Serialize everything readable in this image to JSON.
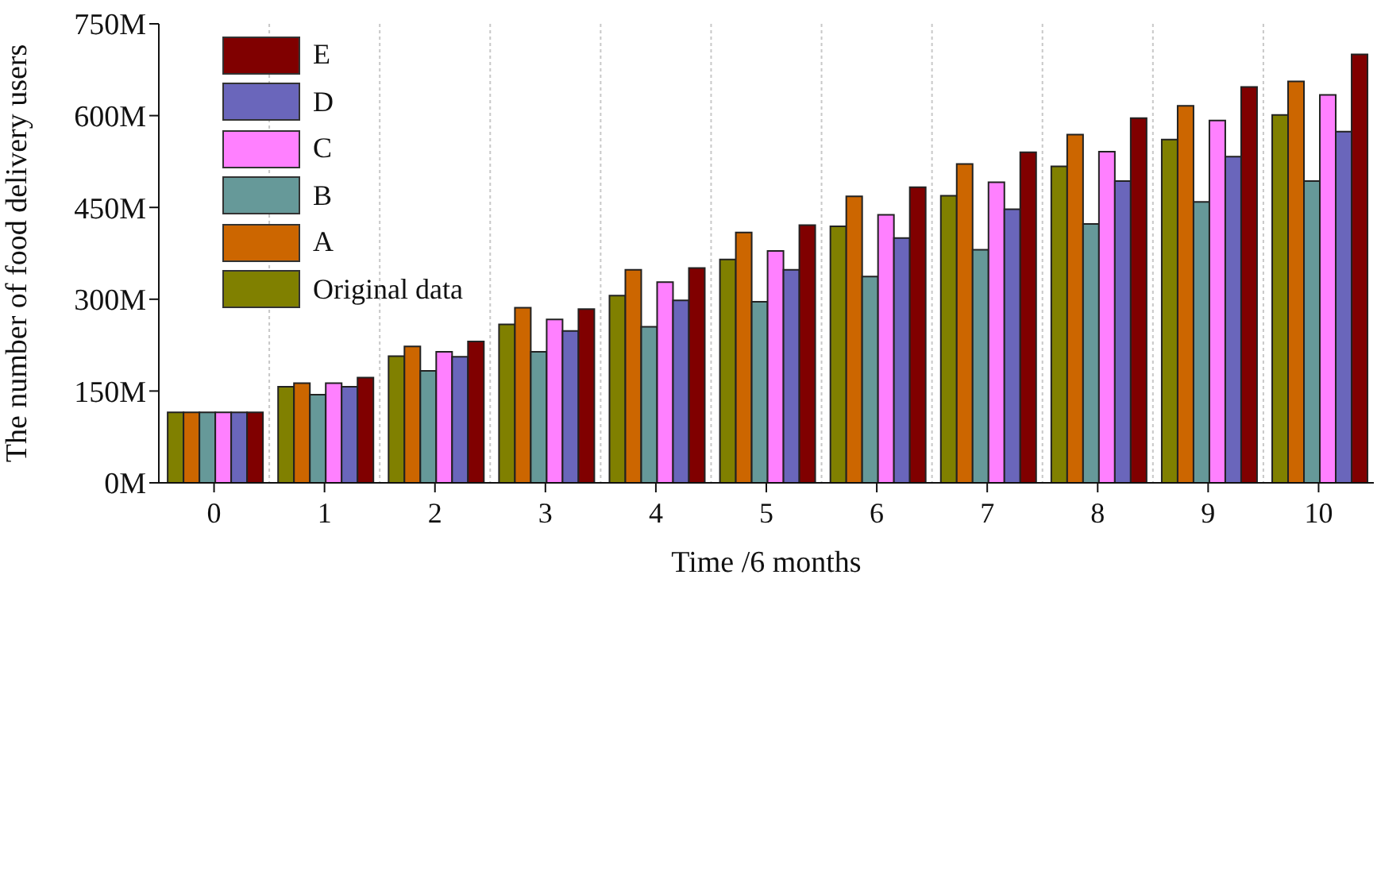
{
  "chart_data": {
    "type": "bar",
    "xlabel": "Time /6 months",
    "ylabel": "The number of food delivery users",
    "categories": [
      "0",
      "1",
      "2",
      "3",
      "4",
      "5",
      "6",
      "7",
      "8",
      "9",
      "10"
    ],
    "series": [
      {
        "name": "Original data",
        "color": "#808000",
        "values": [
          115,
          157,
          207,
          259,
          306,
          365,
          419,
          469,
          517,
          561,
          601
        ]
      },
      {
        "name": "A",
        "color": "#cc6600",
        "values": [
          115,
          163,
          223,
          286,
          348,
          409,
          468,
          521,
          569,
          616,
          656
        ]
      },
      {
        "name": "B",
        "color": "#669999",
        "values": [
          115,
          144,
          183,
          214,
          255,
          296,
          337,
          381,
          423,
          459,
          493
        ]
      },
      {
        "name": "C",
        "color": "#ff80ff",
        "values": [
          115,
          163,
          214,
          267,
          328,
          379,
          438,
          491,
          541,
          592,
          634
        ]
      },
      {
        "name": "D",
        "color": "#6a66bb",
        "values": [
          115,
          157,
          206,
          248,
          298,
          348,
          400,
          447,
          493,
          533,
          574
        ]
      },
      {
        "name": "E",
        "color": "#800000",
        "values": [
          115,
          172,
          231,
          284,
          351,
          421,
          483,
          540,
          596,
          647,
          700
        ]
      }
    ],
    "ylim": [
      0,
      750
    ],
    "yticks": [
      {
        "value": 0,
        "label": "0M"
      },
      {
        "value": 150,
        "label": "150M"
      },
      {
        "value": 300,
        "label": "300M"
      },
      {
        "value": 450,
        "label": "450M"
      },
      {
        "value": 600,
        "label": "600M"
      },
      {
        "value": 750,
        "label": "750M"
      }
    ],
    "grid": "x",
    "legend": "top left"
  }
}
